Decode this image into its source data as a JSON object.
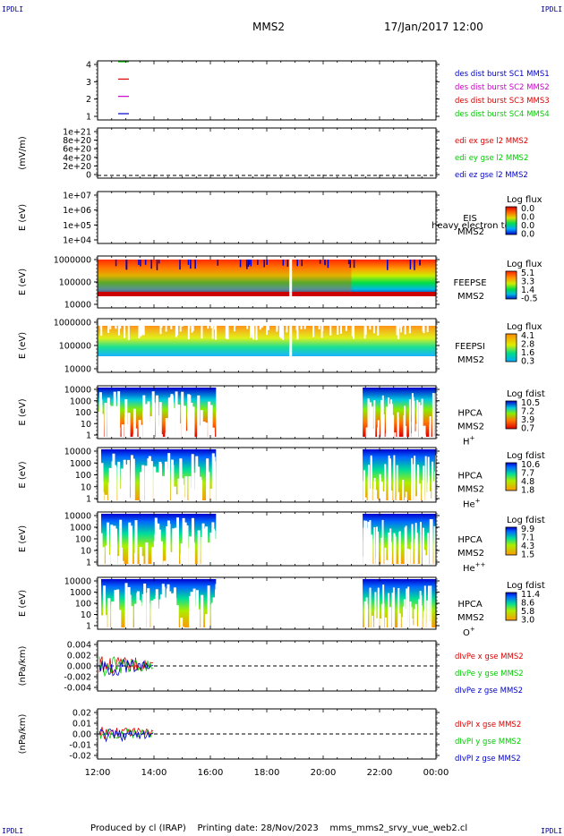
{
  "corners": {
    "tl": "IPDLI",
    "tr": "IPDLI",
    "bl": "IPDLI",
    "br": "IPDLI"
  },
  "header": {
    "spacecraft": "MMS2",
    "datetime": "17/Jan/2017 12:00"
  },
  "footer": {
    "text": "Produced by cl (IRAP)    Printing date: 28/Nov/2023    mms_mms2_srvy_vue_web2.cl"
  },
  "colors": {
    "red": "#dd0000",
    "green": "#00cc00",
    "blue": "#0000cc",
    "magenta": "#cc00cc",
    "dashed": "#000000"
  },
  "x_axis": {
    "ticks": [
      "12:00",
      "14:00",
      "16:00",
      "18:00",
      "20:00",
      "22:00",
      "00:00"
    ],
    "range_hours": [
      12,
      24
    ]
  },
  "chart_data": [
    {
      "type": "line",
      "id": "burst",
      "ytick_labels": [
        "4",
        "3",
        "2",
        "1"
      ],
      "series": [
        {
          "name": "des dist burst SC1 MMS1",
          "color": "#0000cc",
          "y": 1
        },
        {
          "name": "des dist burst SC2 MMS2",
          "color": "#cc00cc",
          "y": 2
        },
        {
          "name": "des dist burst SC3 MMS3",
          "color": "#dd0000",
          "y": 3
        },
        {
          "name": "des dist burst SC4 MMS4",
          "color": "#00cc00",
          "y": 4
        }
      ]
    },
    {
      "type": "line",
      "id": "edi",
      "ylabel": "(mV/m)",
      "ytick_labels": [
        "1e+21",
        "8e+20",
        "6e+20",
        "4e+20",
        "2e+20",
        "0"
      ],
      "series": [
        {
          "name": "edi ex gse l2 MMS2",
          "color": "#dd0000"
        },
        {
          "name": "edi ey gse l2 MMS2",
          "color": "#00cc00"
        },
        {
          "name": "edi ez gse l2 MMS2",
          "color": "#0000cc"
        }
      ]
    },
    {
      "type": "heatmap",
      "id": "eis",
      "ylabel": "E (eV)",
      "ytick_labels": [
        "1e+07",
        "1e+06",
        "1e+05",
        "1e+04"
      ],
      "inst_lines": [
        "EIS",
        "MMS2"
      ],
      "overlay_text": "heavy electron to",
      "colorbar": {
        "title": "Log flux",
        "ticks": [
          "0.0",
          "0.0",
          "0.0",
          "0.0"
        ]
      }
    },
    {
      "type": "heatmap",
      "id": "feepse",
      "ylabel": "E (eV)",
      "ytick_labels": [
        "1000000",
        "100000",
        "10000"
      ],
      "inst_lines": [
        "FEEPSE",
        "MMS2"
      ],
      "colorbar": {
        "title": "Log flux",
        "ticks": [
          "5.1",
          "3.3",
          "1.4",
          "-0.5"
        ]
      }
    },
    {
      "type": "heatmap",
      "id": "feepsi",
      "ylabel": "E (eV)",
      "ytick_labels": [
        "1000000",
        "100000",
        "10000"
      ],
      "inst_lines": [
        "FEEPSI",
        "MMS2"
      ],
      "colorbar": {
        "title": "Log flux",
        "ticks": [
          "4.1",
          "2.8",
          "1.6",
          "0.3"
        ]
      }
    },
    {
      "type": "heatmap",
      "id": "hpca_h",
      "ylabel": "E (eV)",
      "ytick_labels": [
        "10000",
        "1000",
        "100",
        "10",
        "1"
      ],
      "inst_lines": [
        "HPCA",
        "MMS2"
      ],
      "species": "H",
      "species_sup": "+",
      "colorbar": {
        "title": "Log fdist",
        "ticks": [
          "10.5",
          "7.2",
          "3.9",
          "0.7"
        ]
      }
    },
    {
      "type": "heatmap",
      "id": "hpca_he",
      "ylabel": "E (eV)",
      "ytick_labels": [
        "10000",
        "1000",
        "100",
        "10",
        "1"
      ],
      "inst_lines": [
        "HPCA",
        "MMS2"
      ],
      "species": "He",
      "species_sup": "+",
      "colorbar": {
        "title": "Log fdist",
        "ticks": [
          "10.6",
          "7.7",
          "4.8",
          "1.8"
        ]
      }
    },
    {
      "type": "heatmap",
      "id": "hpca_hepp",
      "ylabel": "E (eV)",
      "ytick_labels": [
        "10000",
        "1000",
        "100",
        "10",
        "1"
      ],
      "inst_lines": [
        "HPCA",
        "MMS2"
      ],
      "species": "He",
      "species_sup": "++",
      "colorbar": {
        "title": "Log fdist",
        "ticks": [
          "9.9",
          "7.1",
          "4.3",
          "1.5"
        ]
      }
    },
    {
      "type": "heatmap",
      "id": "hpca_o",
      "ylabel": "E (eV)",
      "ytick_labels": [
        "10000",
        "1000",
        "100",
        "10",
        "1"
      ],
      "inst_lines": [
        "HPCA",
        "MMS2"
      ],
      "species": "O",
      "species_sup": "+",
      "colorbar": {
        "title": "Log fdist",
        "ticks": [
          "11.4",
          "8.6",
          "5.8",
          "3.0"
        ]
      }
    },
    {
      "type": "line",
      "id": "divpe",
      "ylabel": "(nPa/km)",
      "ytick_labels": [
        "0.004",
        "0.002",
        "0.000",
        "-0.002",
        "-0.004"
      ],
      "series": [
        {
          "name": "dIvPe x gse MMS2",
          "color": "#dd0000"
        },
        {
          "name": "dIvPe y gse MMS2",
          "color": "#00cc00"
        },
        {
          "name": "dIvPe z gse MMS2",
          "color": "#0000cc"
        }
      ]
    },
    {
      "type": "line",
      "id": "divpi",
      "ylabel": "(nPa/km)",
      "ytick_labels": [
        "0.02",
        "0.01",
        "0.00",
        "-0.01",
        "-0.02"
      ],
      "series": [
        {
          "name": "dIvPI x gse MMS2",
          "color": "#dd0000"
        },
        {
          "name": "dIvPI y gse MMS2",
          "color": "#00cc00"
        },
        {
          "name": "dIvPI z gse MMS2",
          "color": "#0000cc"
        }
      ]
    }
  ]
}
